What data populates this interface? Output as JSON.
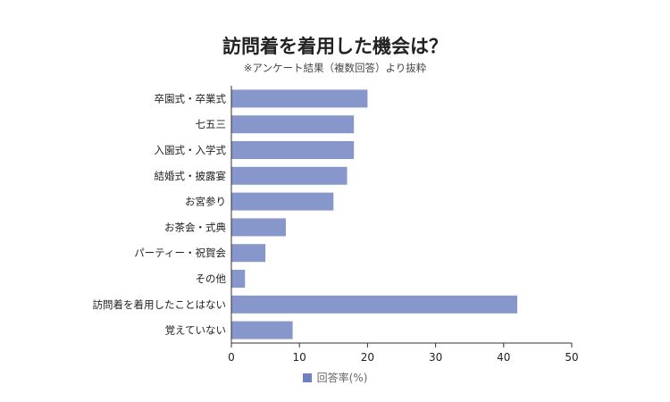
{
  "chart_data": {
    "type": "bar",
    "orientation": "horizontal",
    "title": "訪問着を着用した機会は？",
    "subtitle": "※アンケート結果（複数回答）より抜粋",
    "categories": [
      "卒園式・卒業式",
      "七五三",
      "入園式・入学式",
      "結婚式・披露宴",
      "お宮参り",
      "お茶会・式典",
      "パーティー・祝賀会",
      "その他",
      "訪問着を着用したことはない",
      "覚えていない"
    ],
    "series": [
      {
        "name": "回答率(%)",
        "values": [
          20,
          18,
          18,
          17,
          15,
          8,
          5,
          2,
          42,
          9
        ]
      }
    ],
    "xlim": [
      0,
      50
    ],
    "xticks": [
      0,
      10,
      20,
      30,
      40,
      50
    ],
    "grid": false,
    "legend_position": "bottom",
    "bar_color": "#8797cc",
    "legend_color": "#6f7fc0"
  }
}
